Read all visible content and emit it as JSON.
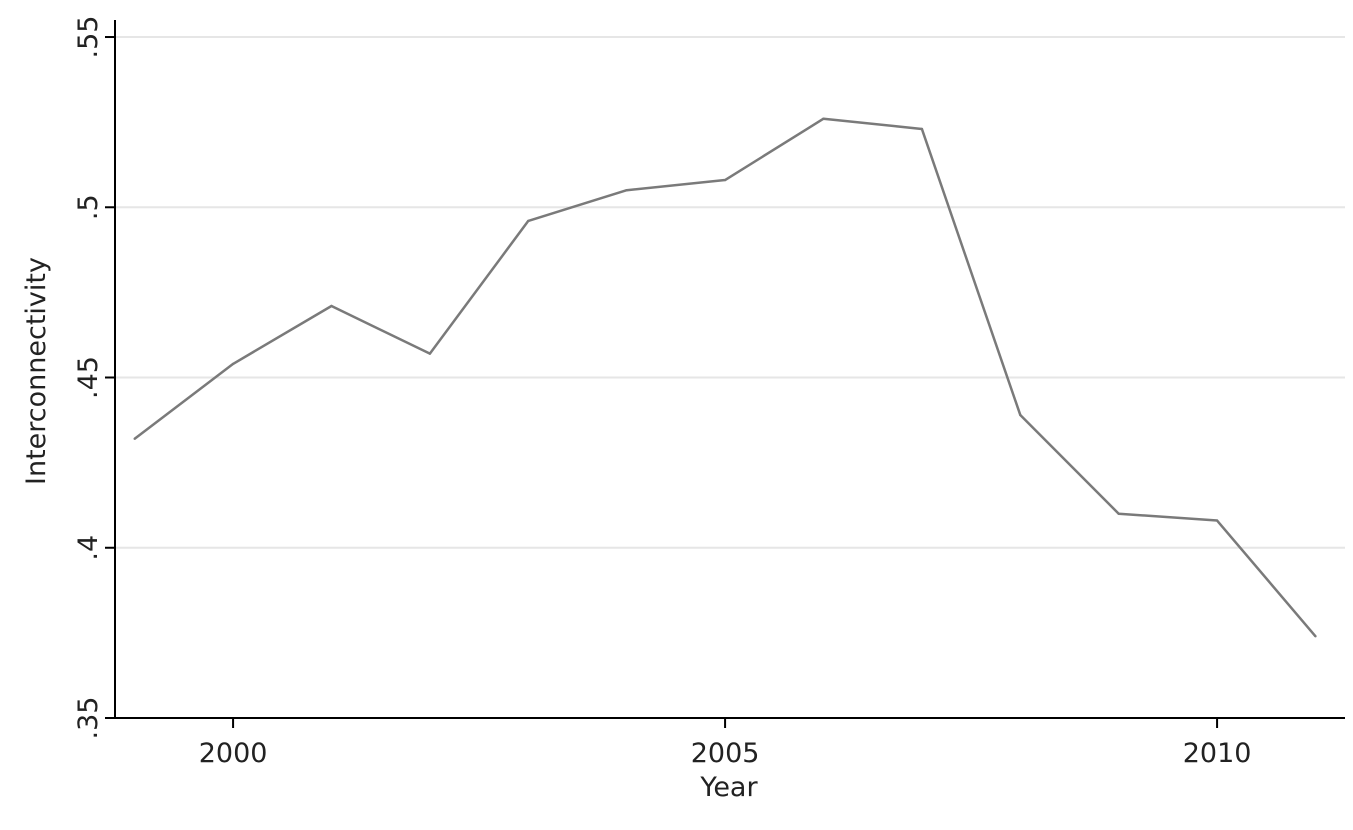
{
  "chart_data": {
    "type": "line",
    "title": "",
    "xlabel": "Year",
    "ylabel": "Interconnectivity",
    "x": [
      1999,
      2000,
      2001,
      2002,
      2003,
      2004,
      2005,
      2006,
      2007,
      2008,
      2009,
      2010,
      2011
    ],
    "series": [
      {
        "values": [
          0.432,
          0.454,
          0.471,
          0.457,
          0.496,
          0.505,
          0.508,
          0.526,
          0.523,
          0.439,
          0.41,
          0.408,
          0.374
        ]
      }
    ],
    "xlim": [
      1998.8,
      2011.3
    ],
    "ylim": [
      0.35,
      0.555
    ],
    "x_ticks": [
      {
        "value": 2000,
        "label": "2000"
      },
      {
        "value": 2005,
        "label": "2005"
      },
      {
        "value": 2010,
        "label": "2010"
      }
    ],
    "y_ticks": [
      {
        "value": 0.35,
        "label": ".35"
      },
      {
        "value": 0.4,
        "label": ".4"
      },
      {
        "value": 0.45,
        "label": ".45"
      },
      {
        "value": 0.5,
        "label": ".5"
      },
      {
        "value": 0.55,
        "label": ".55"
      }
    ],
    "grid": "horizontal",
    "colors": {
      "line": "#7a7a7a",
      "grid": "#e6e6e6",
      "axis": "#000000"
    }
  }
}
